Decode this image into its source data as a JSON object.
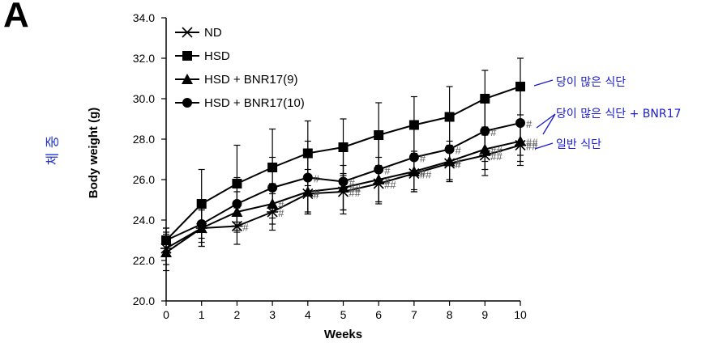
{
  "panel_label": "A",
  "korean_ylabel": "체 중",
  "annotations": [
    "당이 많은 식단",
    "당이 많은 식단 + BNR17",
    "일반 식단"
  ],
  "colors": {
    "annotation": "#1a1acc",
    "series": "#000000",
    "marker_fill": "#000000"
  },
  "chart_data": {
    "type": "line",
    "xlabel": "Weeks",
    "ylabel": "Body weight (g)",
    "x": [
      0,
      1,
      2,
      3,
      4,
      5,
      6,
      7,
      8,
      9,
      10
    ],
    "x_ticks": [
      "0",
      "1",
      "2",
      "3",
      "4",
      "5",
      "6",
      "7",
      "8",
      "9",
      "10"
    ],
    "ylim": [
      20.0,
      34.0
    ],
    "y_ticks": [
      "20.0",
      "22.0",
      "24.0",
      "26.0",
      "28.0",
      "30.0",
      "32.0",
      "34.0"
    ],
    "legend_position": "top-left",
    "grid": false,
    "series": [
      {
        "name": "ND",
        "marker": "star",
        "values": [
          22.6,
          23.6,
          23.7,
          24.4,
          25.3,
          25.4,
          25.8,
          26.3,
          26.8,
          27.2,
          27.7
        ],
        "errors": [
          0.8,
          0.9,
          0.9,
          0.9,
          0.9,
          0.9,
          0.9,
          0.9,
          0.9,
          1.0,
          1.0
        ],
        "sig": [
          "",
          "",
          "#",
          "#",
          "#",
          "##",
          "##",
          "##",
          "#",
          "##",
          "##"
        ]
      },
      {
        "name": "HSD",
        "marker": "square",
        "values": [
          23.0,
          24.8,
          25.8,
          26.6,
          27.3,
          27.6,
          28.2,
          28.7,
          29.1,
          30.0,
          30.6
        ],
        "errors": [
          0.6,
          1.7,
          1.9,
          1.9,
          1.6,
          1.4,
          1.6,
          1.4,
          1.5,
          1.4,
          1.4
        ],
        "sig": [
          "",
          "",
          "",
          "",
          "",
          "",
          "",
          "",
          "",
          "",
          ""
        ]
      },
      {
        "name": "HSD + BNR17(9)",
        "marker": "triangle",
        "values": [
          22.4,
          23.6,
          24.4,
          24.8,
          25.4,
          25.6,
          26.0,
          26.4,
          26.9,
          27.5,
          27.9
        ],
        "errors": [
          0.9,
          0.9,
          1.0,
          1.0,
          1.1,
          1.1,
          1.1,
          1.0,
          1.0,
          1.0,
          1.0
        ],
        "sig": [
          "",
          "",
          "",
          "#",
          "#",
          "##",
          "#",
          "#",
          "#",
          "##",
          "##"
        ]
      },
      {
        "name": "HSD + BNR17(10)",
        "marker": "circle",
        "values": [
          23.0,
          23.8,
          24.8,
          25.6,
          26.1,
          25.9,
          26.5,
          27.1,
          27.5,
          28.4,
          28.8
        ],
        "errors": [
          0.6,
          0.9,
          1.3,
          1.5,
          1.8,
          1.6,
          1.7,
          1.6,
          1.5,
          1.5,
          1.6
        ],
        "sig": [
          "",
          "",
          "",
          "",
          "#",
          "#",
          "#",
          "#",
          "#",
          "#",
          "#"
        ]
      }
    ]
  }
}
